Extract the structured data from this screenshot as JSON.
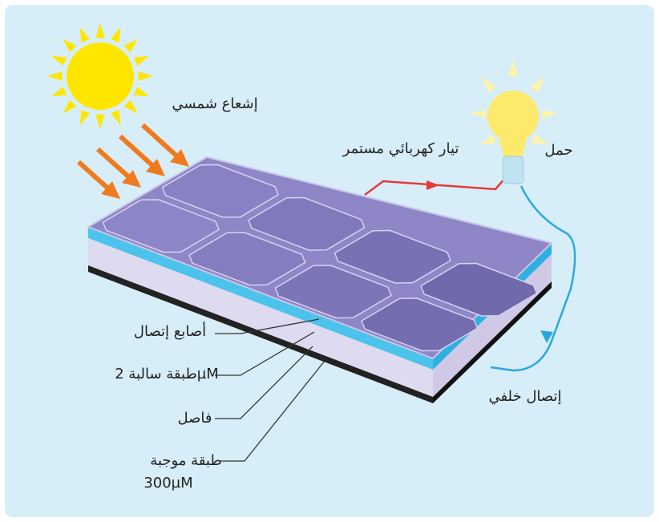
{
  "labels": {
    "solar_radiation": "إشعاع شمسي",
    "direct_current": "تيار كهربائي مستمر",
    "load": "حمل",
    "contact_fingers": "أصابع إتصال",
    "negative_layer": "طبقة سالبة 2µM",
    "separator": "فاصل",
    "positive_layer": "طبقة موجبة",
    "positive_layer_thickness": "300µM",
    "back_contact": "إتصال خلفي"
  }
}
